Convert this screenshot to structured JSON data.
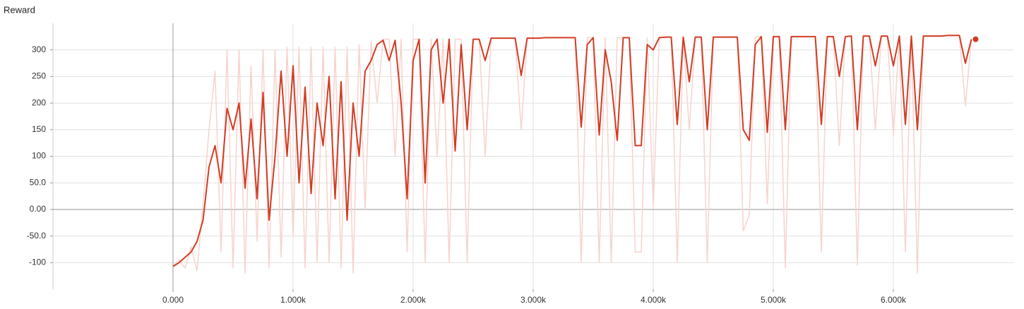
{
  "chart_data": {
    "type": "line",
    "title": "Reward",
    "x": [
      0,
      50,
      100,
      150,
      200,
      250,
      300,
      350,
      400,
      450,
      500,
      550,
      600,
      650,
      700,
      750,
      800,
      850,
      900,
      950,
      1000,
      1050,
      1100,
      1150,
      1200,
      1250,
      1300,
      1350,
      1400,
      1450,
      1500,
      1550,
      1600,
      1650,
      1700,
      1750,
      1800,
      1850,
      1900,
      1950,
      2000,
      2050,
      2100,
      2150,
      2200,
      2250,
      2300,
      2350,
      2400,
      2450,
      2500,
      2550,
      2600,
      2650,
      2700,
      2750,
      2800,
      2850,
      2900,
      2950,
      3000,
      3050,
      3100,
      3150,
      3200,
      3250,
      3300,
      3350,
      3400,
      3450,
      3500,
      3550,
      3600,
      3650,
      3700,
      3750,
      3800,
      3850,
      3900,
      3950,
      4000,
      4050,
      4100,
      4150,
      4200,
      4250,
      4300,
      4350,
      4400,
      4450,
      4500,
      4550,
      4600,
      4650,
      4700,
      4750,
      4800,
      4850,
      4900,
      4950,
      5000,
      5050,
      5100,
      5150,
      5200,
      5250,
      5300,
      5350,
      5400,
      5450,
      5500,
      5550,
      5600,
      5650,
      5700,
      5750,
      5800,
      5850,
      5900,
      5950,
      6000,
      6050,
      6100,
      6150,
      6200,
      6250,
      6300,
      6350,
      6400,
      6450,
      6500,
      6550,
      6600,
      6650
    ],
    "series": [
      {
        "color": "#f6d3cc",
        "values": [
          -107,
          -95,
          -110,
          -70,
          -115,
          10,
          150,
          260,
          -80,
          300,
          -110,
          300,
          -120,
          270,
          -60,
          300,
          -110,
          300,
          -90,
          305,
          -50,
          305,
          -110,
          305,
          -100,
          305,
          -100,
          305,
          -110,
          305,
          -120,
          310,
          0,
          315,
          200,
          320,
          320,
          100,
          320,
          -80,
          320,
          320,
          -100,
          320,
          100,
          320,
          -100,
          320,
          320,
          -100,
          320,
          320,
          100,
          322,
          322,
          322,
          322,
          322,
          150,
          322,
          322,
          322,
          323,
          323,
          323,
          323,
          323,
          323,
          -100,
          323,
          323,
          -100,
          323,
          -100,
          323,
          323,
          323,
          -80,
          -80,
          323,
          5,
          323,
          324,
          324,
          -100,
          324,
          150,
          324,
          324,
          -100,
          324,
          324,
          324,
          324,
          324,
          -40,
          -10,
          324,
          325,
          10,
          325,
          325,
          -110,
          325,
          325,
          325,
          325,
          325,
          -80,
          325,
          325,
          120,
          325,
          326,
          -105,
          326,
          326,
          150,
          326,
          326,
          140,
          326,
          -80,
          326,
          -120,
          326,
          326,
          326,
          326,
          327,
          327,
          327,
          195,
          320
        ]
      },
      {
        "color": "#d23c25",
        "values": [
          -107,
          -100,
          -90,
          -80,
          -60,
          -20,
          80,
          120,
          50,
          190,
          150,
          200,
          40,
          170,
          20,
          220,
          -20,
          100,
          260,
          100,
          270,
          50,
          230,
          30,
          200,
          120,
          250,
          20,
          240,
          -20,
          200,
          100,
          260,
          280,
          310,
          318,
          280,
          318,
          200,
          20,
          280,
          320,
          50,
          300,
          320,
          200,
          320,
          110,
          310,
          150,
          320,
          320,
          280,
          322,
          322,
          322,
          322,
          322,
          252,
          322,
          322,
          322,
          323,
          323,
          323,
          323,
          323,
          323,
          155,
          310,
          323,
          140,
          300,
          240,
          130,
          323,
          323,
          120,
          120,
          310,
          300,
          323,
          324,
          324,
          160,
          324,
          240,
          324,
          324,
          150,
          324,
          324,
          324,
          324,
          324,
          150,
          130,
          310,
          325,
          145,
          325,
          325,
          150,
          325,
          325,
          325,
          325,
          325,
          160,
          325,
          325,
          250,
          325,
          326,
          150,
          326,
          326,
          270,
          326,
          326,
          270,
          326,
          160,
          326,
          150,
          326,
          326,
          326,
          326,
          327,
          327,
          327,
          275,
          320
        ]
      }
    ],
    "xlim": [
      -1000,
      7000
    ],
    "ylim": [
      -150,
      350
    ],
    "xticks": [
      {
        "value": 0,
        "label": "0.000"
      },
      {
        "value": 1000,
        "label": "1.000k"
      },
      {
        "value": 2000,
        "label": "2.000k"
      },
      {
        "value": 3000,
        "label": "3.000k"
      },
      {
        "value": 4000,
        "label": "4.000k"
      },
      {
        "value": 5000,
        "label": "5.000k"
      },
      {
        "value": 6000,
        "label": "6.000k"
      }
    ],
    "yticks": [
      -100,
      {
        "value": -50,
        "label": "-50.0"
      },
      {
        "value": 0,
        "label": "0.00"
      },
      {
        "value": 50,
        "label": "50.0"
      },
      100,
      150,
      200,
      250,
      300
    ],
    "grid": true
  }
}
